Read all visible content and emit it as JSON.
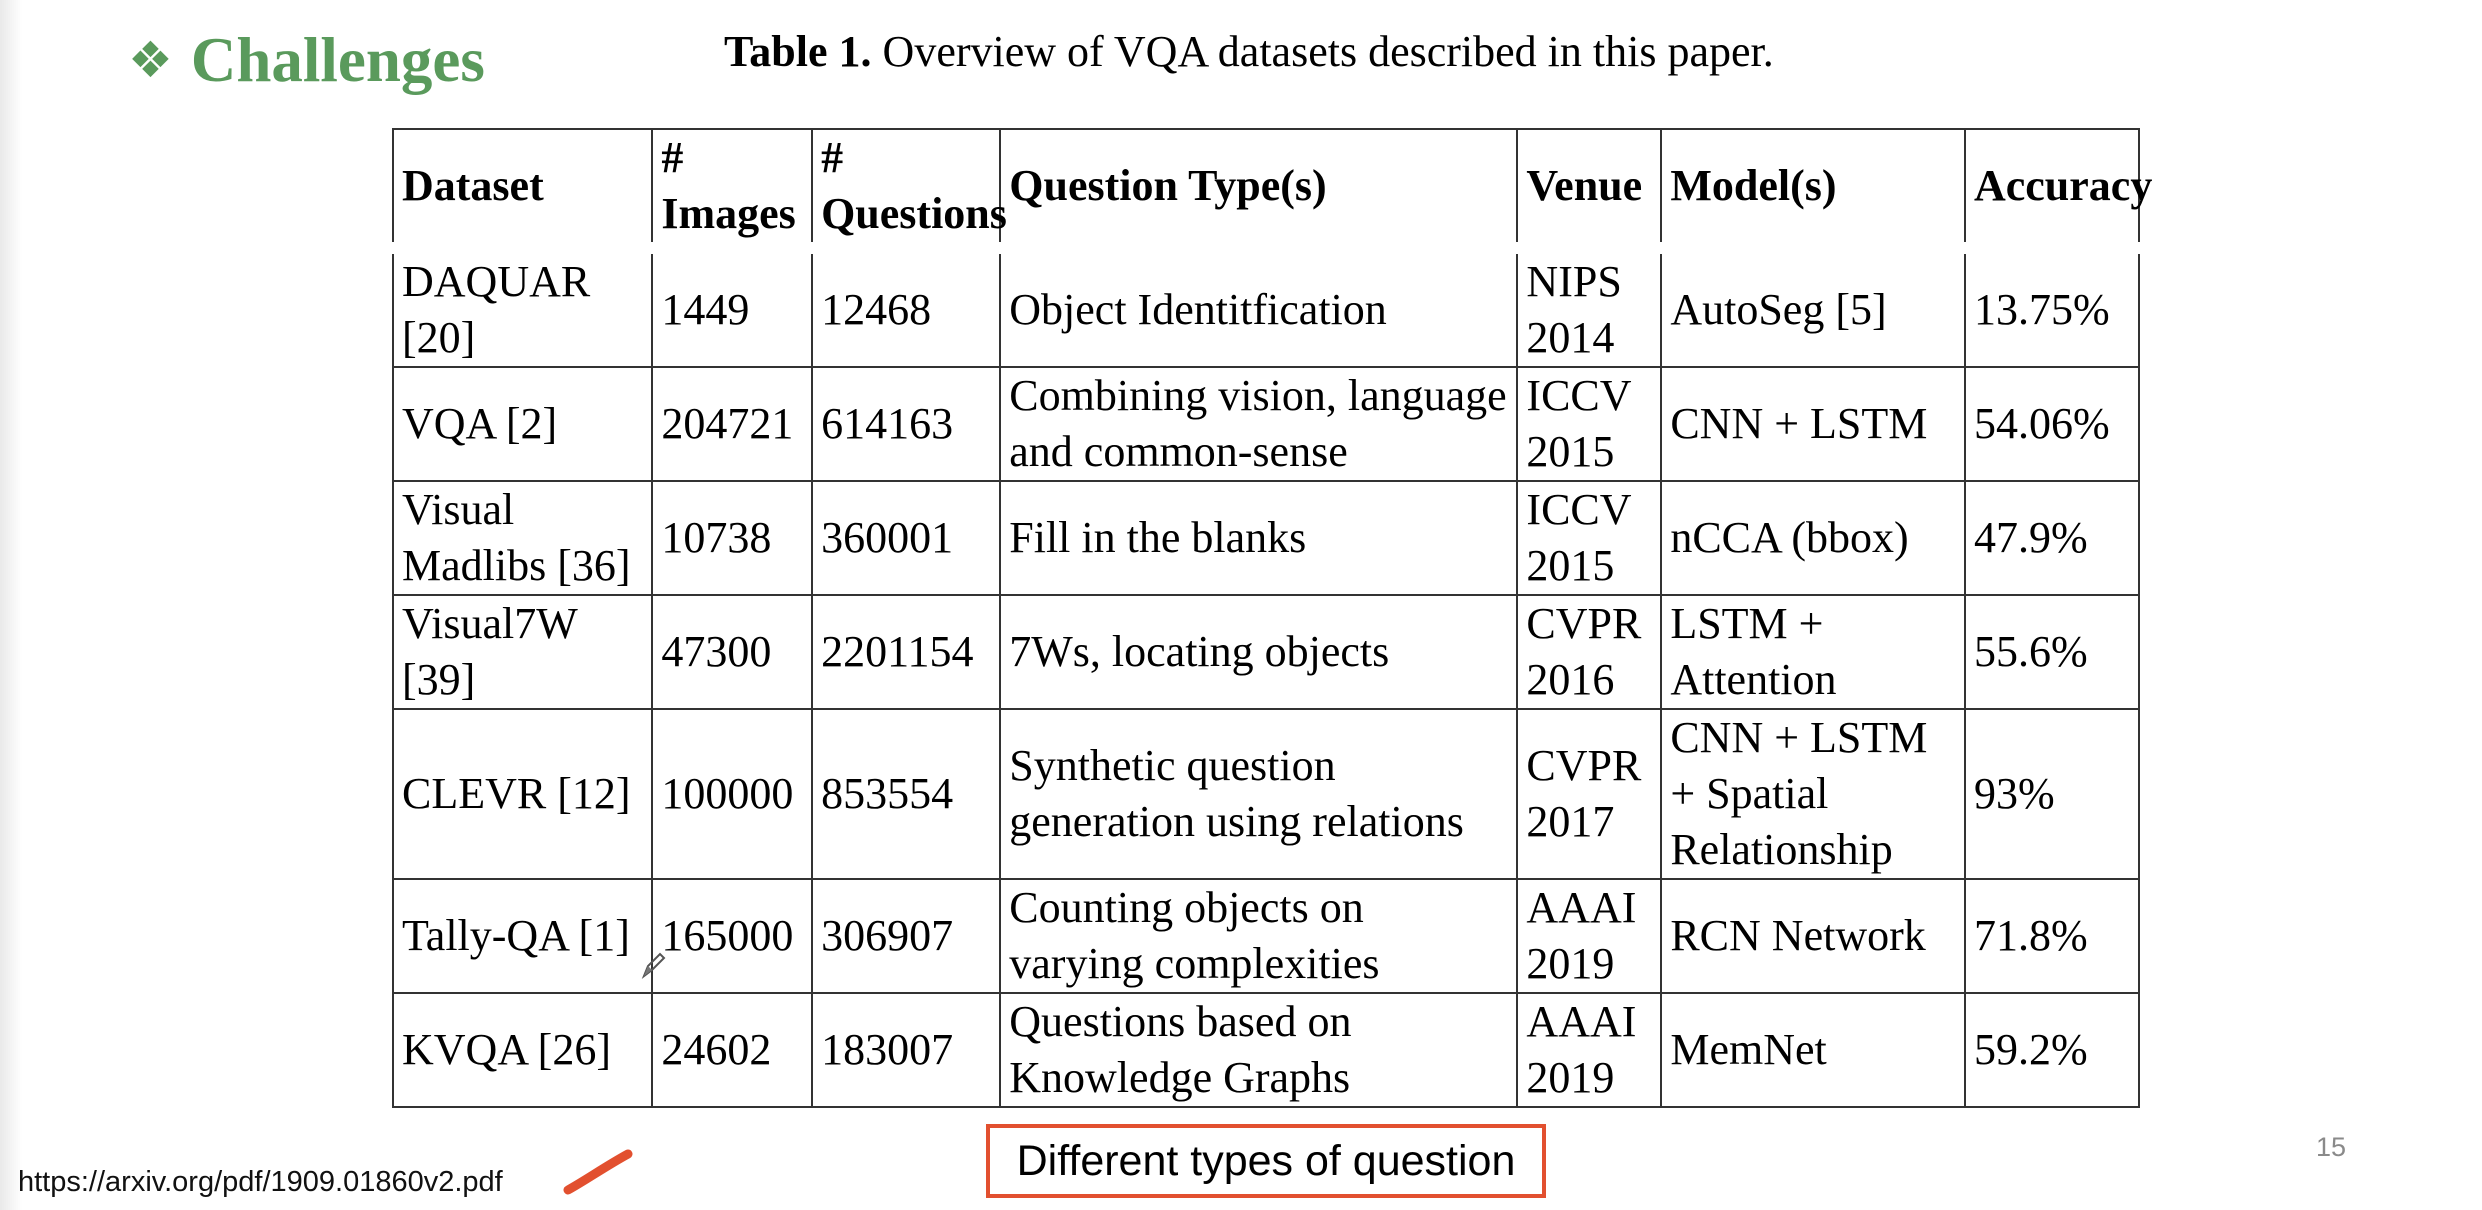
{
  "slide": {
    "bullet_glyph": "❖",
    "title": "Challenges",
    "page_number": "15",
    "title_color": "#5a9a5c",
    "accent_color": "#e2502f"
  },
  "caption": {
    "label": "Table 1.",
    "text": " Overview of VQA datasets described in this paper."
  },
  "table": {
    "headers": [
      "Dataset",
      "# Images",
      "# Questions",
      "Question Type(s)",
      "Venue",
      "Model(s)",
      "Accuracy"
    ],
    "rows": [
      [
        "DAQUAR [20]",
        "1449",
        "12468",
        "Object Identitfication",
        "NIPS 2014",
        "AutoSeg [5]",
        "13.75%"
      ],
      [
        "VQA [2]",
        "204721",
        "614163",
        "Combining vision, language and common-sense",
        "ICCV 2015",
        "CNN + LSTM",
        "54.06%"
      ],
      [
        "Visual Madlibs [36]",
        "10738",
        "360001",
        "Fill in the blanks",
        "ICCV 2015",
        "nCCA (bbox)",
        "47.9%"
      ],
      [
        "Visual7W [39]",
        "47300",
        "2201154",
        "7Ws, locating objects",
        "CVPR 2016",
        "LSTM + Attention",
        "55.6%"
      ],
      [
        "CLEVR [12]",
        "100000",
        "853554",
        "Synthetic question generation using relations",
        "CVPR 2017",
        "CNN + LSTM + Spatial Relationship",
        "93%"
      ],
      [
        "Tally-QA [1]",
        "165000",
        "306907",
        "Counting objects on varying complexities",
        "AAAI 2019",
        "RCN Network",
        "71.8%"
      ],
      [
        "KVQA [26]",
        "24602",
        "183007",
        "Questions based on Knowledge Graphs",
        "AAAI 2019",
        "MemNet",
        "59.2%"
      ]
    ]
  },
  "footer": {
    "source_url": "https://arxiv.org/pdf/1909.01860v2.pdf",
    "callout": "Different types of question"
  },
  "icons": {
    "bullet": "diamond-bullet-icon",
    "pen_mark": "pen-stroke-icon",
    "cursor": "pen-cursor-icon"
  }
}
